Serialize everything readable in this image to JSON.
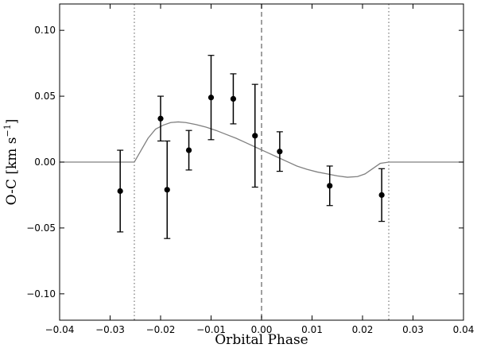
{
  "chart_data": {
    "type": "scatter",
    "xlabel": "Orbital Phase",
    "ylabel": "O-C [km s$^{-1}$]",
    "ylabel_parts": {
      "main": "O-C [km s",
      "sup": "−1",
      "close": "]"
    },
    "xlim": [
      -0.04,
      0.04
    ],
    "ylim": [
      -0.12,
      0.12
    ],
    "xticks": [
      -0.04,
      -0.03,
      -0.02,
      -0.01,
      0.0,
      0.01,
      0.02,
      0.03,
      0.04
    ],
    "xtick_labels": [
      "−0.04",
      "−0.03",
      "−0.02",
      "−0.01",
      "0.00",
      "0.01",
      "0.02",
      "0.03",
      "0.04"
    ],
    "yticks": [
      -0.1,
      -0.05,
      0.0,
      0.05,
      0.1
    ],
    "ytick_labels": [
      "−0.10",
      "−0.05",
      "0.00",
      "0.05",
      "0.10"
    ],
    "grid": false,
    "vertical_lines": [
      {
        "x": -0.0252,
        "style": "dotted"
      },
      {
        "x": 0.0,
        "style": "dashed"
      },
      {
        "x": 0.0252,
        "style": "dotted"
      }
    ],
    "points": [
      {
        "x": -0.028,
        "y": -0.022,
        "err": 0.031
      },
      {
        "x": -0.02,
        "y": 0.033,
        "err": 0.017
      },
      {
        "x": -0.0187,
        "y": -0.021,
        "err": 0.037
      },
      {
        "x": -0.0144,
        "y": 0.009,
        "err": 0.015
      },
      {
        "x": -0.01,
        "y": 0.049,
        "err": 0.032
      },
      {
        "x": -0.0056,
        "y": 0.048,
        "err": 0.019
      },
      {
        "x": -0.0013,
        "y": 0.02,
        "err": 0.039
      },
      {
        "x": 0.0036,
        "y": 0.008,
        "err": 0.015
      },
      {
        "x": 0.0135,
        "y": -0.018,
        "err": 0.015
      },
      {
        "x": 0.0238,
        "y": -0.025,
        "err": 0.02
      }
    ],
    "model_curve": {
      "x": [
        -0.04,
        -0.0252,
        -0.024,
        -0.0225,
        -0.021,
        -0.0195,
        -0.018,
        -0.0165,
        -0.015,
        -0.013,
        -0.011,
        -0.009,
        -0.007,
        -0.005,
        -0.003,
        -0.001,
        0.001,
        0.003,
        0.005,
        0.007,
        0.009,
        0.011,
        0.013,
        0.015,
        0.017,
        0.019,
        0.0205,
        0.022,
        0.0235,
        0.0252,
        0.04
      ],
      "y": [
        0.0,
        0.0,
        0.008,
        0.018,
        0.025,
        0.028,
        0.03,
        0.0305,
        0.03,
        0.0285,
        0.0265,
        0.024,
        0.021,
        0.018,
        0.0145,
        0.011,
        0.0075,
        0.004,
        0.0005,
        -0.003,
        -0.0055,
        -0.0075,
        -0.009,
        -0.0105,
        -0.0115,
        -0.011,
        -0.009,
        -0.005,
        -0.001,
        0.0,
        0.0
      ],
      "color": "#808080"
    },
    "colors": {
      "points": "#000000",
      "dashed": "#808080",
      "dotted": "#808080",
      "curve": "#808080"
    }
  }
}
